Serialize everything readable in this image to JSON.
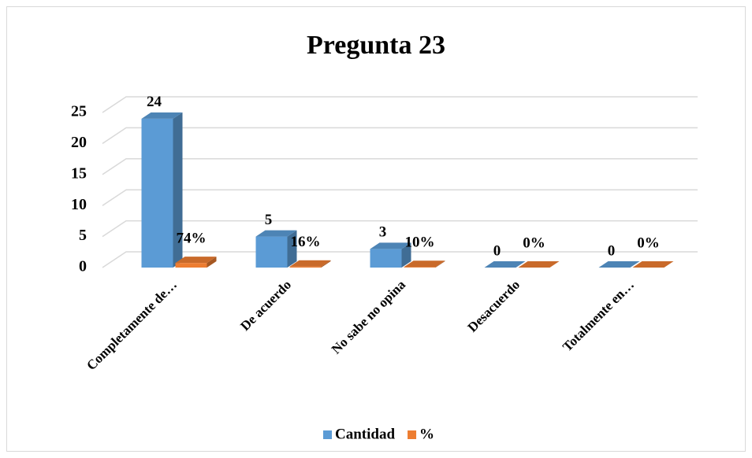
{
  "chart_data": {
    "type": "bar3d",
    "title": "Pregunta 23",
    "categories": [
      "Completamente de…",
      "De acuerdo",
      "No sabe no opina",
      "Desacuerdo",
      "Totalmente en…"
    ],
    "series": [
      {
        "name": "Cantidad",
        "color": "#5b9bd5",
        "values": [
          24,
          5,
          3,
          0,
          0
        ]
      },
      {
        "name": "%",
        "color": "#ed7d31",
        "values": [
          0.74,
          0.16,
          0.1,
          0,
          0
        ],
        "value_labels": [
          "74%",
          "16%",
          "10%",
          "0%",
          "0%"
        ]
      }
    ],
    "ylim": [
      0,
      25
    ],
    "yticks": [
      0,
      5,
      10,
      15,
      20,
      25
    ],
    "grid": true,
    "legend": "bottom"
  }
}
